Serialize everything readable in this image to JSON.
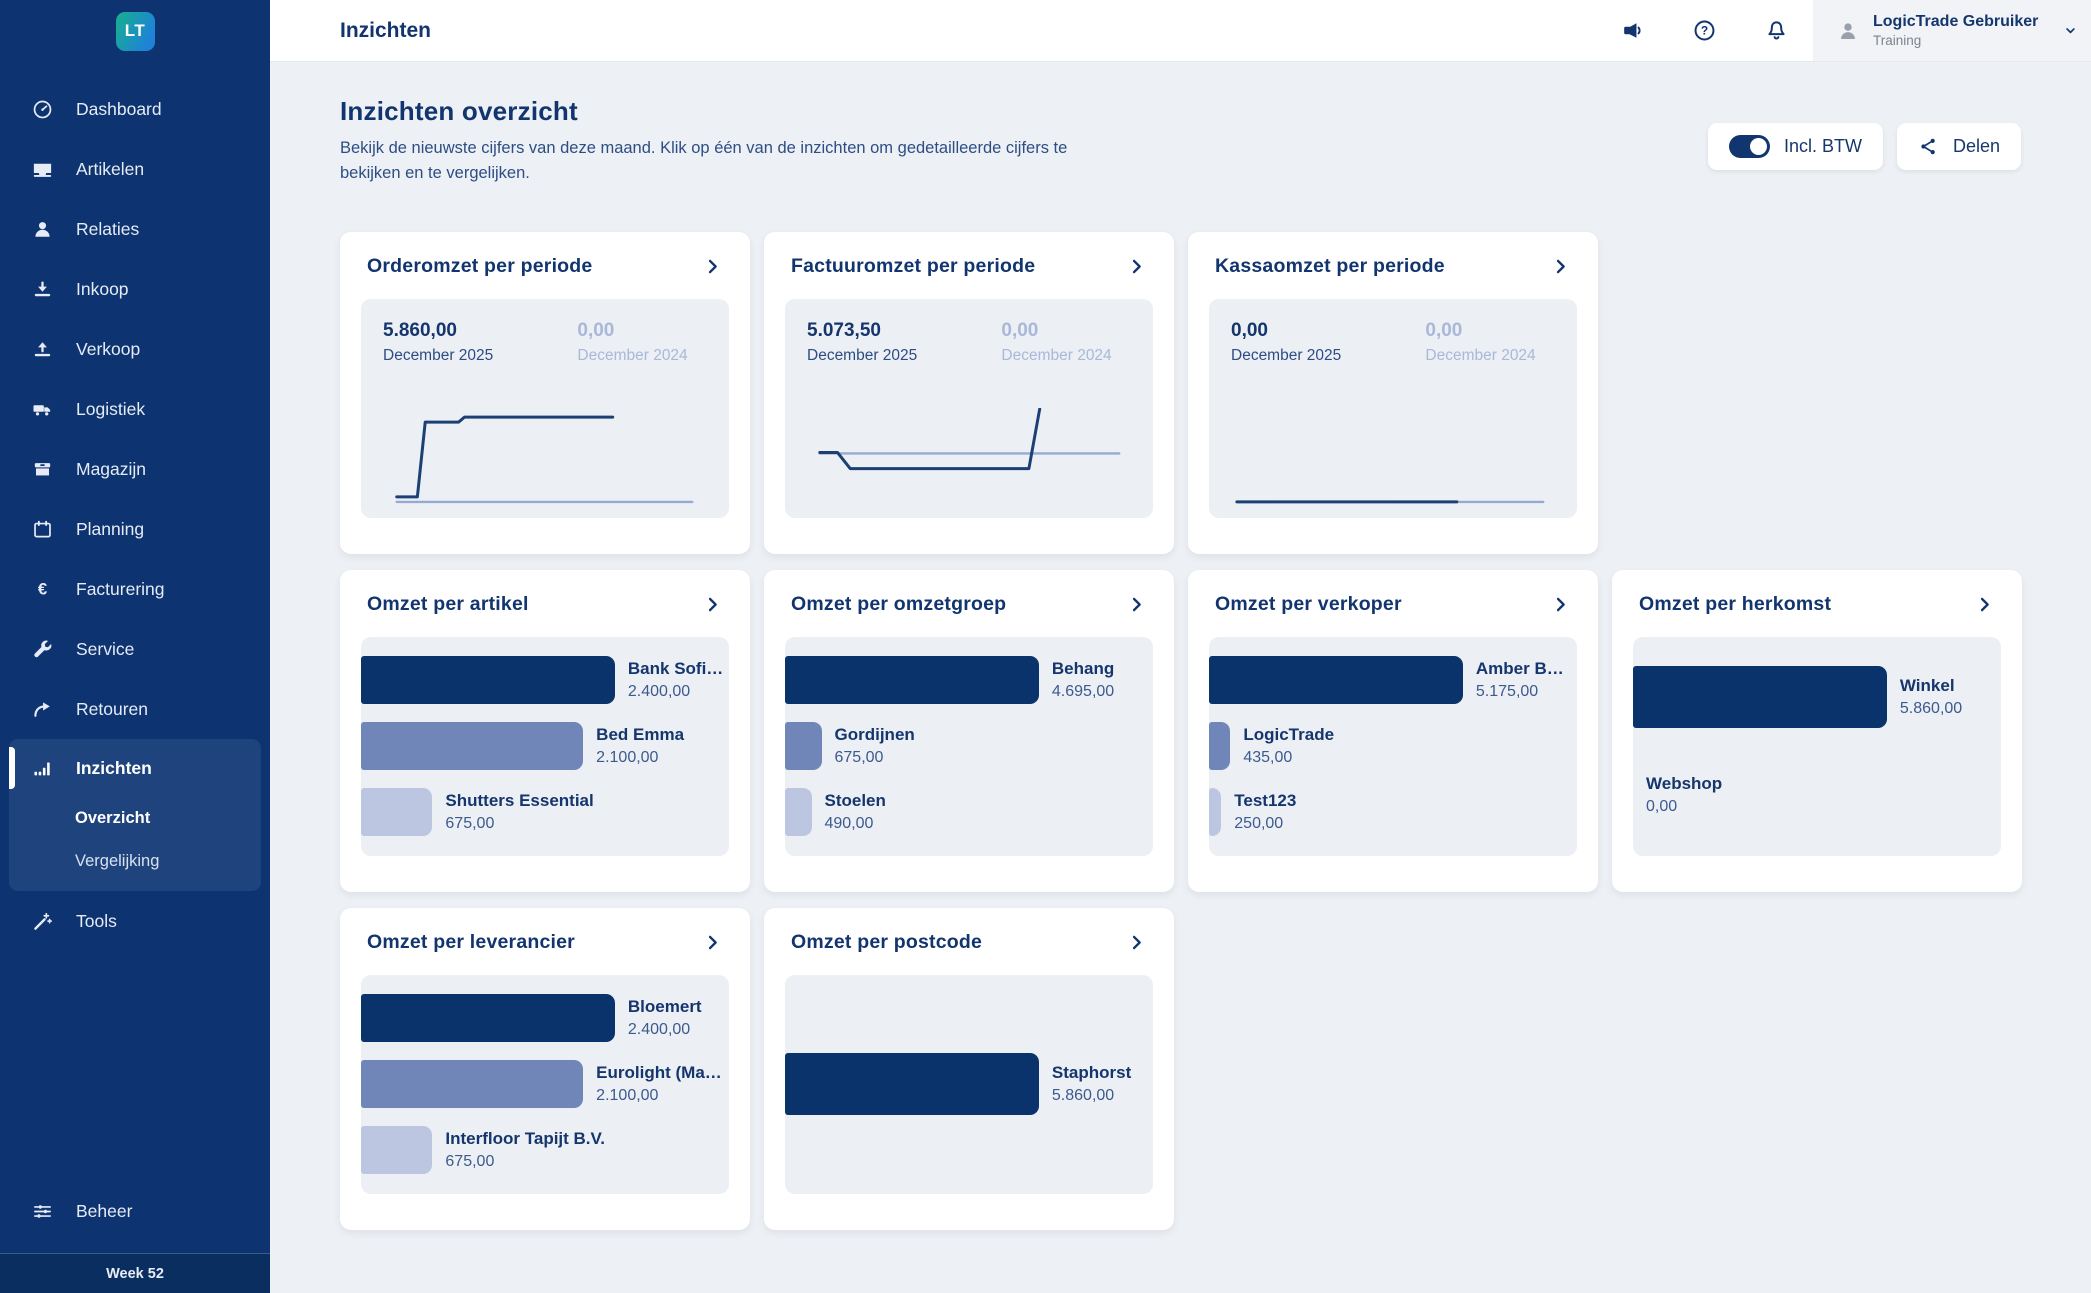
{
  "colors": {
    "sidebar_bg": "#0d3471",
    "accent_navy": "#12356f",
    "bar_dark": "#0a336b",
    "bar_medium": "#7085b8",
    "bar_light": "#bcc6e0",
    "line_current": "#1c4074",
    "line_previous": "#97a9d3",
    "muted_blue": "#a9b8d9"
  },
  "sidebar": {
    "logo_text": "LT",
    "items": [
      {
        "label": "Dashboard",
        "icon": "dashboard"
      },
      {
        "label": "Artikelen",
        "icon": "articles"
      },
      {
        "label": "Relaties",
        "icon": "relations"
      },
      {
        "label": "Inkoop",
        "icon": "purchase"
      },
      {
        "label": "Verkoop",
        "icon": "sales"
      },
      {
        "label": "Logistiek",
        "icon": "logistics"
      },
      {
        "label": "Magazijn",
        "icon": "warehouse"
      },
      {
        "label": "Planning",
        "icon": "planning"
      },
      {
        "label": "Facturering",
        "icon": "invoicing"
      },
      {
        "label": "Service",
        "icon": "service"
      },
      {
        "label": "Retouren",
        "icon": "returns"
      },
      {
        "label": "Inzichten",
        "icon": "insights",
        "active": true
      },
      {
        "label": "Tools",
        "icon": "tools"
      }
    ],
    "sub_items": [
      {
        "label": "Overzicht",
        "active": true
      },
      {
        "label": "Vergelijking",
        "active": false
      }
    ],
    "bottom_item": {
      "label": "Beheer",
      "icon": "admin"
    },
    "week_label": "Week 52"
  },
  "topbar": {
    "title": "Inzichten",
    "icons": [
      "megaphone",
      "help",
      "bell"
    ],
    "user": {
      "name": "LogicTrade Gebruiker",
      "role": "Training"
    }
  },
  "page": {
    "title": "Inzichten overzicht",
    "subtitle": "Bekijk de nieuwste cijfers van deze maand. Klik op één van de inzichten om gedetailleerde cijfers te bekijken en te vergelijken.",
    "toggle_label": "Incl. BTW",
    "toggle_on": true,
    "share_label": "Delen"
  },
  "cards": [
    {
      "type": "line",
      "title": "Orderomzet per periode",
      "current": {
        "value": "5.860,00",
        "label": "December 2025",
        "points": [
          [
            14,
            88
          ],
          [
            35,
            88
          ],
          [
            43,
            14
          ],
          [
            77,
            14
          ],
          [
            83,
            9
          ],
          [
            234,
            9
          ]
        ]
      },
      "previous": {
        "value": "0,00",
        "label": "December 2024",
        "points": [
          [
            14,
            93
          ],
          [
            315,
            93
          ]
        ]
      }
    },
    {
      "type": "line",
      "title": "Factuuromzet per periode",
      "current": {
        "value": "5.073,50",
        "label": "December 2025",
        "points": [
          [
            13,
            44
          ],
          [
            31,
            44
          ],
          [
            44,
            60
          ],
          [
            226,
            60
          ],
          [
            237,
            1
          ]
        ]
      },
      "previous": {
        "value": "0,00",
        "label": "December 2024",
        "points": [
          [
            13,
            45
          ],
          [
            318,
            45
          ]
        ]
      }
    },
    {
      "type": "line",
      "title": "Kassaomzet per periode",
      "current": {
        "value": "0,00",
        "label": "December 2025",
        "points": [
          [
            6,
            93
          ],
          [
            230,
            93
          ]
        ]
      },
      "previous": {
        "value": "0,00",
        "label": "December 2024",
        "points": [
          [
            230,
            93
          ],
          [
            318,
            93
          ]
        ]
      }
    },
    {
      "type": "bar",
      "title": "Omzet per artikel",
      "items": [
        {
          "label": "Bank Sofi…",
          "value": "2.400,00"
        },
        {
          "label": "Bed Emma",
          "value": "2.100,00"
        },
        {
          "label": "Shutters Essential",
          "value": "675,00"
        }
      ]
    },
    {
      "type": "bar",
      "title": "Omzet per omzetgroep",
      "items": [
        {
          "label": "Behang",
          "value": "4.695,00"
        },
        {
          "label": "Gordijnen",
          "value": "675,00"
        },
        {
          "label": "Stoelen",
          "value": "490,00"
        }
      ]
    },
    {
      "type": "bar",
      "title": "Omzet per verkoper",
      "items": [
        {
          "label": "Amber B…",
          "value": "5.175,00"
        },
        {
          "label": "LogicTrade",
          "value": "435,00"
        },
        {
          "label": "Test123",
          "value": "250,00"
        }
      ]
    },
    {
      "type": "bar",
      "title": "Omzet per herkomst",
      "items": [
        {
          "label": "Winkel",
          "value": "5.860,00"
        },
        {
          "label": "Webshop",
          "value": "0,00"
        }
      ]
    },
    {
      "type": "bar",
      "title": "Omzet per leverancier",
      "items": [
        {
          "label": "Bloemert",
          "value": "2.400,00"
        },
        {
          "label": "Eurolight (Ma…",
          "value": "2.100,00"
        },
        {
          "label": "Interfloor Tapijt B.V.",
          "value": "675,00"
        }
      ]
    },
    {
      "type": "bar",
      "title": "Omzet per postcode",
      "items": [
        {
          "label": "Staphorst",
          "value": "5.860,00"
        }
      ]
    }
  ],
  "chart_data": [
    {
      "type": "line",
      "title": "Orderomzet per periode",
      "series": [
        {
          "name": "December 2025",
          "total": 5860.0
        },
        {
          "name": "December 2024",
          "total": 0.0
        }
      ]
    },
    {
      "type": "line",
      "title": "Factuuromzet per periode",
      "series": [
        {
          "name": "December 2025",
          "total": 5073.5
        },
        {
          "name": "December 2024",
          "total": 0.0
        }
      ]
    },
    {
      "type": "line",
      "title": "Kassaomzet per periode",
      "series": [
        {
          "name": "December 2025",
          "total": 0.0
        },
        {
          "name": "December 2024",
          "total": 0.0
        }
      ]
    },
    {
      "type": "bar",
      "title": "Omzet per artikel",
      "categories": [
        "Bank Sofi…",
        "Bed Emma",
        "Shutters Essential"
      ],
      "values": [
        2400.0,
        2100.0,
        675.0
      ]
    },
    {
      "type": "bar",
      "title": "Omzet per omzetgroep",
      "categories": [
        "Behang",
        "Gordijnen",
        "Stoelen"
      ],
      "values": [
        4695.0,
        675.0,
        490.0
      ]
    },
    {
      "type": "bar",
      "title": "Omzet per verkoper",
      "categories": [
        "Amber B…",
        "LogicTrade",
        "Test123"
      ],
      "values": [
        5175.0,
        435.0,
        250.0
      ]
    },
    {
      "type": "bar",
      "title": "Omzet per herkomst",
      "categories": [
        "Winkel",
        "Webshop"
      ],
      "values": [
        5860.0,
        0.0
      ]
    },
    {
      "type": "bar",
      "title": "Omzet per leverancier",
      "categories": [
        "Bloemert",
        "Eurolight (Ma…",
        "Interfloor Tapijt B.V."
      ],
      "values": [
        2400.0,
        2100.0,
        675.0
      ]
    },
    {
      "type": "bar",
      "title": "Omzet per postcode",
      "categories": [
        "Staphorst"
      ],
      "values": [
        5860.0
      ]
    }
  ]
}
